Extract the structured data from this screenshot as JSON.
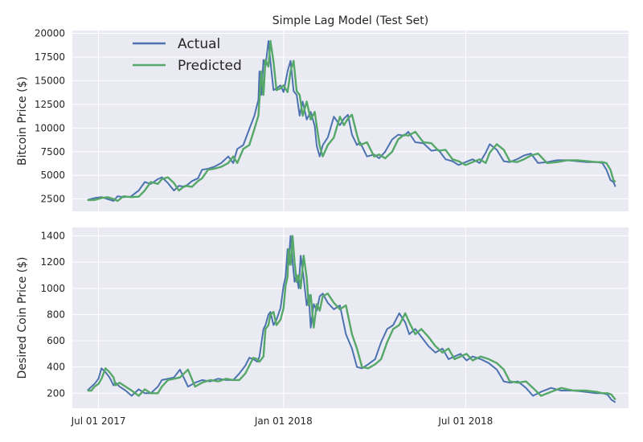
{
  "figure": {
    "title": "Simple Lag Model (Test Set)"
  },
  "colors": {
    "plot_background": "#EAEAF2",
    "grid": "#FFFFFF",
    "actual": "#4C72B0",
    "predicted": "#55A868"
  },
  "chart_data": [
    {
      "type": "line",
      "title": "Simple Lag Model (Test Set)",
      "xlabel": "",
      "ylabel": "Bitcoin Price ($)",
      "xlim": [
        "2017-06-05",
        "2018-12-10"
      ],
      "ylim": [
        1200,
        20300
      ],
      "yticks": [
        2500,
        5000,
        7500,
        10000,
        12500,
        15000,
        17500,
        20000
      ],
      "ytick_labels": [
        "2500",
        "5000",
        "7500",
        "10000",
        "12500",
        "15000",
        "17500",
        "20000"
      ],
      "xticks": [
        "2017-07-01",
        "2018-01-01",
        "2018-07-01"
      ],
      "xtick_labels": [
        "Jul 01 2017",
        "Jan 01 2018",
        "Jul 01 2018"
      ],
      "grid": true,
      "legend_position": "top-left",
      "x": [
        "2017-06-20",
        "2017-06-27",
        "2017-07-04",
        "2017-07-10",
        "2017-07-16",
        "2017-07-20",
        "2017-07-26",
        "2017-08-02",
        "2017-08-10",
        "2017-08-16",
        "2017-08-22",
        "2017-08-29",
        "2017-09-02",
        "2017-09-08",
        "2017-09-14",
        "2017-09-19",
        "2017-09-25",
        "2017-10-02",
        "2017-10-08",
        "2017-10-12",
        "2017-10-18",
        "2017-10-24",
        "2017-10-31",
        "2017-11-07",
        "2017-11-12",
        "2017-11-16",
        "2017-11-22",
        "2017-11-28",
        "2017-12-03",
        "2017-12-07",
        "2017-12-08",
        "2017-12-10",
        "2017-12-12",
        "2017-12-14",
        "2017-12-17",
        "2017-12-19",
        "2017-12-22",
        "2017-12-25",
        "2017-12-29",
        "2018-01-01",
        "2018-01-05",
        "2018-01-08",
        "2018-01-11",
        "2018-01-14",
        "2018-01-17",
        "2018-01-20",
        "2018-01-24",
        "2018-01-28",
        "2018-02-01",
        "2018-02-03",
        "2018-02-06",
        "2018-02-09",
        "2018-02-14",
        "2018-02-20",
        "2018-02-26",
        "2018-03-02",
        "2018-03-06",
        "2018-03-10",
        "2018-03-15",
        "2018-03-18",
        "2018-03-25",
        "2018-04-01",
        "2018-04-06",
        "2018-04-12",
        "2018-04-19",
        "2018-04-25",
        "2018-05-01",
        "2018-05-05",
        "2018-05-12",
        "2018-05-20",
        "2018-05-28",
        "2018-06-04",
        "2018-06-11",
        "2018-06-18",
        "2018-06-24",
        "2018-07-01",
        "2018-07-08",
        "2018-07-15",
        "2018-07-21",
        "2018-07-25",
        "2018-08-01",
        "2018-08-08",
        "2018-08-14",
        "2018-08-21",
        "2018-08-28",
        "2018-09-04",
        "2018-09-11",
        "2018-09-20",
        "2018-09-30",
        "2018-10-10",
        "2018-10-20",
        "2018-10-30",
        "2018-11-08",
        "2018-11-14",
        "2018-11-18",
        "2018-11-22",
        "2018-11-25",
        "2018-11-27"
      ],
      "series": [
        {
          "name": "Actual",
          "color": "#4C72B0",
          "values": [
            2400,
            2600,
            2700,
            2500,
            2300,
            2800,
            2700,
            2750,
            3400,
            4300,
            4100,
            4600,
            4800,
            4200,
            3400,
            3900,
            3800,
            4400,
            4700,
            5600,
            5700,
            5900,
            6300,
            7000,
            6300,
            7800,
            8200,
            9900,
            11300,
            13000,
            16000,
            13500,
            17200,
            16500,
            19200,
            17000,
            14000,
            14200,
            14500,
            13800,
            16000,
            17100,
            13900,
            13500,
            11300,
            12800,
            10900,
            11700,
            10200,
            8100,
            7000,
            8200,
            9000,
            11200,
            10300,
            11000,
            11400,
            9300,
            8200,
            8500,
            7000,
            7200,
            6800,
            7500,
            8800,
            9300,
            9200,
            9600,
            8500,
            8400,
            7600,
            7700,
            6700,
            6500,
            6100,
            6400,
            6700,
            6300,
            7400,
            8300,
            7700,
            6500,
            6400,
            6700,
            7100,
            7300,
            6300,
            6400,
            6600,
            6600,
            6500,
            6400,
            6400,
            6300,
            5600,
            4500,
            4300,
            3800
          ]
        },
        {
          "name": "Predicted",
          "color": "#55A868",
          "values": [
            2400,
            2400,
            2600,
            2700,
            2500,
            2300,
            2800,
            2700,
            2750,
            3400,
            4300,
            4100,
            4600,
            4800,
            4200,
            3400,
            3900,
            3800,
            4400,
            4700,
            5600,
            5700,
            5900,
            6300,
            7000,
            6300,
            7800,
            8200,
            9900,
            11300,
            13000,
            16000,
            13500,
            17200,
            16500,
            19200,
            17000,
            14000,
            14200,
            14500,
            13800,
            16000,
            17100,
            13900,
            13500,
            11300,
            12800,
            10900,
            11700,
            10200,
            8100,
            7000,
            8200,
            9000,
            11200,
            10300,
            11000,
            11400,
            9300,
            8200,
            8500,
            7000,
            7200,
            6800,
            7500,
            8800,
            9300,
            9200,
            9600,
            8500,
            8400,
            7600,
            7700,
            6700,
            6500,
            6100,
            6400,
            6700,
            6300,
            7400,
            8300,
            7700,
            6500,
            6400,
            6700,
            7100,
            7300,
            6300,
            6400,
            6600,
            6600,
            6500,
            6400,
            6400,
            6300,
            5600,
            4500,
            4300
          ]
        }
      ]
    },
    {
      "type": "line",
      "title": "",
      "xlabel": "",
      "ylabel": "Desired Coin Price ($)",
      "xlim": [
        "2017-06-05",
        "2018-12-10"
      ],
      "ylim": [
        85,
        1465
      ],
      "yticks": [
        200,
        400,
        600,
        800,
        1000,
        1200,
        1400
      ],
      "ytick_labels": [
        "200",
        "400",
        "600",
        "800",
        "1000",
        "1200",
        "1400"
      ],
      "xticks": [
        "2017-07-01",
        "2018-01-01",
        "2018-07-01"
      ],
      "xtick_labels": [
        "Jul 01 2017",
        "Jan 01 2018",
        "Jul 01 2018"
      ],
      "grid": true,
      "x": [
        "2017-06-20",
        "2017-06-24",
        "2017-06-27",
        "2017-07-01",
        "2017-07-04",
        "2017-07-08",
        "2017-07-12",
        "2017-07-16",
        "2017-07-18",
        "2017-07-22",
        "2017-07-28",
        "2017-08-03",
        "2017-08-10",
        "2017-08-16",
        "2017-08-22",
        "2017-08-29",
        "2017-09-02",
        "2017-09-08",
        "2017-09-14",
        "2017-09-20",
        "2017-09-28",
        "2017-10-05",
        "2017-10-12",
        "2017-10-20",
        "2017-10-28",
        "2017-11-05",
        "2017-11-12",
        "2017-11-18",
        "2017-11-24",
        "2017-11-28",
        "2017-12-02",
        "2017-12-06",
        "2017-12-08",
        "2017-12-12",
        "2017-12-14",
        "2017-12-17",
        "2017-12-19",
        "2017-12-22",
        "2017-12-25",
        "2017-12-29",
        "2018-01-01",
        "2018-01-03",
        "2018-01-05",
        "2018-01-06",
        "2018-01-08",
        "2018-01-10",
        "2018-01-12",
        "2018-01-14",
        "2018-01-16",
        "2018-01-18",
        "2018-01-21",
        "2018-01-24",
        "2018-01-26",
        "2018-01-28",
        "2018-01-31",
        "2018-02-03",
        "2018-02-06",
        "2018-02-09",
        "2018-02-14",
        "2018-02-20",
        "2018-02-26",
        "2018-03-04",
        "2018-03-10",
        "2018-03-15",
        "2018-03-20",
        "2018-03-26",
        "2018-04-02",
        "2018-04-08",
        "2018-04-14",
        "2018-04-20",
        "2018-04-26",
        "2018-05-02",
        "2018-05-06",
        "2018-05-12",
        "2018-05-18",
        "2018-05-25",
        "2018-06-01",
        "2018-06-08",
        "2018-06-14",
        "2018-06-20",
        "2018-06-26",
        "2018-07-02",
        "2018-07-08",
        "2018-07-16",
        "2018-07-24",
        "2018-08-01",
        "2018-08-08",
        "2018-08-14",
        "2018-08-22",
        "2018-08-30",
        "2018-09-06",
        "2018-09-14",
        "2018-09-24",
        "2018-10-04",
        "2018-10-16",
        "2018-10-28",
        "2018-11-08",
        "2018-11-14",
        "2018-11-19",
        "2018-11-23",
        "2018-11-27"
      ],
      "series": [
        {
          "name": "Actual",
          "color": "#4C72B0",
          "values": [
            220,
            250,
            270,
            310,
            390,
            360,
            320,
            260,
            280,
            250,
            220,
            180,
            230,
            200,
            200,
            250,
            300,
            310,
            320,
            380,
            250,
            280,
            300,
            290,
            310,
            300,
            300,
            350,
            410,
            470,
            460,
            440,
            480,
            690,
            720,
            800,
            820,
            720,
            760,
            850,
            1020,
            1090,
            1300,
            1180,
            1400,
            1200,
            1050,
            1100,
            1000,
            1250,
            1080,
            870,
            950,
            700,
            880,
            830,
            940,
            960,
            890,
            840,
            870,
            650,
            540,
            400,
            390,
            420,
            460,
            590,
            690,
            720,
            810,
            740,
            650,
            690,
            630,
            560,
            510,
            540,
            460,
            480,
            500,
            450,
            480,
            460,
            430,
            380,
            290,
            280,
            290,
            240,
            180,
            210,
            240,
            220,
            220,
            210,
            200,
            200,
            190,
            150,
            130
          ]
        },
        {
          "name": "Predicted",
          "color": "#55A868",
          "values": [
            220,
            220,
            250,
            270,
            310,
            390,
            360,
            320,
            260,
            280,
            250,
            220,
            180,
            230,
            200,
            200,
            250,
            300,
            310,
            320,
            380,
            250,
            280,
            300,
            290,
            310,
            300,
            300,
            350,
            410,
            470,
            460,
            440,
            480,
            690,
            720,
            800,
            820,
            720,
            760,
            850,
            1020,
            1090,
            1300,
            1180,
            1400,
            1200,
            1050,
            1100,
            1000,
            1250,
            1080,
            870,
            950,
            700,
            880,
            830,
            940,
            960,
            890,
            840,
            870,
            650,
            540,
            400,
            390,
            420,
            460,
            590,
            690,
            720,
            810,
            740,
            650,
            690,
            630,
            560,
            510,
            540,
            460,
            480,
            500,
            450,
            480,
            460,
            430,
            380,
            290,
            280,
            290,
            240,
            180,
            210,
            240,
            220,
            220,
            210,
            200,
            200,
            190,
            150
          ]
        }
      ]
    }
  ]
}
